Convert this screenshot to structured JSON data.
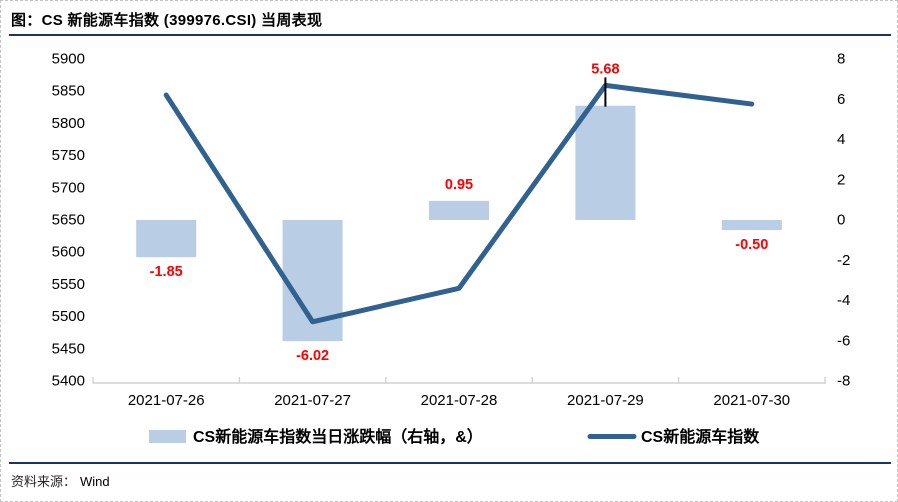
{
  "title": "图：CS 新能源车指数 (399976.CSI) 当周表现",
  "footer": {
    "source_label": "资料来源：",
    "source_value": "Wind"
  },
  "colors": {
    "bar_fill": "#B9CDE4",
    "line": "#30618F",
    "value_label": "#FF0000",
    "rule_navy": "#17375E",
    "axis_line": "#D2D2D2",
    "text": "#000000",
    "leader": "#000000"
  },
  "chart_data": {
    "type": "combo",
    "categories": [
      "2021-07-26",
      "2021-07-27",
      "2021-07-28",
      "2021-07-29",
      "2021-07-30"
    ],
    "series": [
      {
        "name": "CS新能源车指数当日涨跌幅（右轴，&）",
        "type": "bar",
        "axis": "right",
        "values": [
          -1.85,
          -6.02,
          0.95,
          5.68,
          -0.5
        ],
        "labels": [
          "-1.85",
          "-6.02",
          "0.95",
          "5.68",
          "-0.50"
        ]
      },
      {
        "name": "CS新能源车指数",
        "type": "line",
        "axis": "left",
        "values": [
          5844,
          5492,
          5544,
          5859,
          5830
        ]
      }
    ],
    "left_axis": {
      "min": 5400,
      "max": 5900,
      "step": 50,
      "ticks": [
        "5900",
        "5850",
        "5800",
        "5750",
        "5700",
        "5650",
        "5600",
        "5550",
        "5500",
        "5450",
        "5400"
      ]
    },
    "right_axis": {
      "min": -8,
      "max": 8,
      "step": 2,
      "ticks": [
        "8",
        "6",
        "4",
        "2",
        "0",
        "-2",
        "-4",
        "-6",
        "-8"
      ]
    },
    "grid": false,
    "legend_position": "bottom"
  }
}
